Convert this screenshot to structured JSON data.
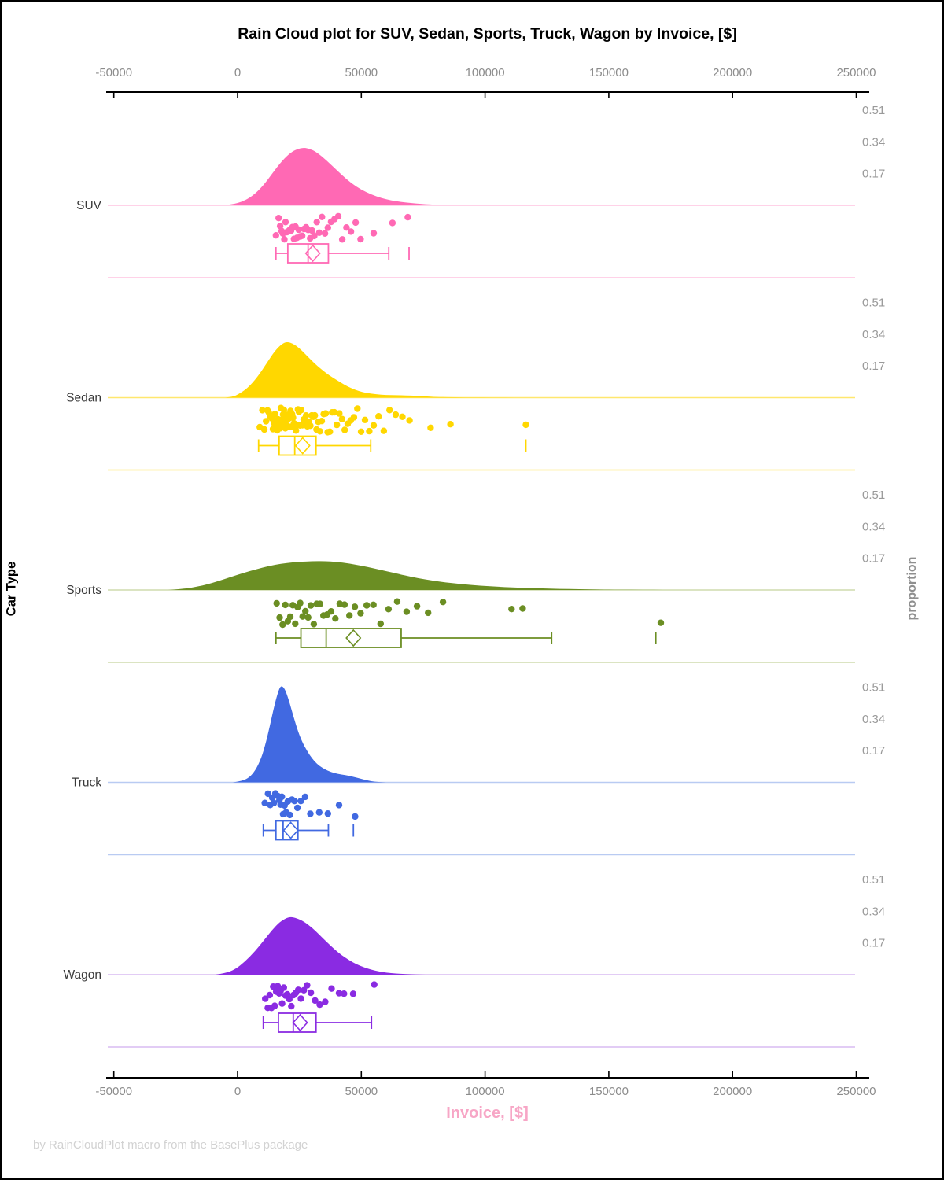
{
  "title": "Rain Cloud plot for SUV, Sedan, Sports, Truck, Wagon by Invoice, [$]",
  "xlabel": "Invoice, [$]",
  "ylabel_left": "Car Type",
  "ylabel_right": "proportion",
  "footer": "by RainCloudPlot macro from the BasePlus package",
  "colors": {
    "axis_line": "#000000",
    "tick_label": "#8c8c8c",
    "category_label": "#3a3a3a",
    "proportion_tick_label": "#9a9a9a",
    "xlabel_color": "#F7A6C6",
    "footer_color": "#d2d2d2",
    "background": "#ffffff"
  },
  "chart_data": {
    "type": "raincloud",
    "orientation": "horizontal bands: density cloud above baseline, jittered rain points and box plot below",
    "x_axis": {
      "label": "Invoice, [$]",
      "ticks": [
        -50000,
        0,
        50000,
        100000,
        150000,
        200000,
        250000
      ],
      "range": [
        -52500,
        255000
      ],
      "shown_top_and_bottom": true
    },
    "proportion_axis": {
      "label": "proportion",
      "ticks_per_band": [
        0.51,
        0.34,
        0.17
      ]
    },
    "categories": [
      "SUV",
      "Sedan",
      "Sports",
      "Truck",
      "Wagon"
    ],
    "series": [
      {
        "name": "SUV",
        "color": "#FF69B4",
        "light_color": "#FFC4E0",
        "density": [
          [
            -6000,
            0
          ],
          [
            -2000,
            0.005
          ],
          [
            2000,
            0.02
          ],
          [
            6000,
            0.05
          ],
          [
            10000,
            0.1
          ],
          [
            14000,
            0.17
          ],
          [
            18000,
            0.24
          ],
          [
            22000,
            0.29
          ],
          [
            26000,
            0.31
          ],
          [
            29000,
            0.305
          ],
          [
            32000,
            0.285
          ],
          [
            36000,
            0.24
          ],
          [
            40000,
            0.19
          ],
          [
            44000,
            0.14
          ],
          [
            48000,
            0.1
          ],
          [
            52000,
            0.07
          ],
          [
            56000,
            0.048
          ],
          [
            60000,
            0.032
          ],
          [
            64000,
            0.022
          ],
          [
            68000,
            0.015
          ],
          [
            72000,
            0.01
          ],
          [
            76000,
            0.006
          ],
          [
            80000,
            0.003
          ],
          [
            86000,
            0.001
          ],
          [
            92000,
            0
          ]
        ],
        "points": [
          15500,
          16600,
          17200,
          17800,
          18300,
          18900,
          19400,
          19900,
          20400,
          21000,
          21600,
          22200,
          22800,
          23400,
          24000,
          24700,
          25400,
          26100,
          26900,
          27700,
          28500,
          29300,
          30100,
          31000,
          32000,
          33000,
          34100,
          35300,
          36500,
          37800,
          39200,
          40700,
          42300,
          44000,
          45800,
          47700,
          49700,
          55000,
          62600,
          68800
        ],
        "box": {
          "whisker_low": 15500,
          "q1": 20300,
          "median": 28500,
          "mean": 30400,
          "q3": 36700,
          "whisker_high": 61100,
          "outliers": [
            69300
          ]
        }
      },
      {
        "name": "Sedan",
        "color": "#FFD700",
        "light_color": "#FFE76E",
        "density": [
          [
            -5000,
            0
          ],
          [
            -2000,
            0.005
          ],
          [
            0,
            0.015
          ],
          [
            4000,
            0.05
          ],
          [
            8000,
            0.11
          ],
          [
            12000,
            0.19
          ],
          [
            15000,
            0.25
          ],
          [
            18000,
            0.29
          ],
          [
            20000,
            0.3
          ],
          [
            22500,
            0.29
          ],
          [
            25000,
            0.265
          ],
          [
            28000,
            0.225
          ],
          [
            31000,
            0.185
          ],
          [
            34000,
            0.15
          ],
          [
            37000,
            0.12
          ],
          [
            40000,
            0.095
          ],
          [
            43000,
            0.07
          ],
          [
            46000,
            0.05
          ],
          [
            49000,
            0.035
          ],
          [
            52000,
            0.025
          ],
          [
            56000,
            0.018
          ],
          [
            60000,
            0.014
          ],
          [
            64000,
            0.013
          ],
          [
            68000,
            0.012
          ],
          [
            72000,
            0.01
          ],
          [
            76000,
            0.007
          ],
          [
            80000,
            0.004
          ],
          [
            86000,
            0.002
          ],
          [
            94000,
            0.001
          ],
          [
            104000,
            0.0005
          ],
          [
            112000,
            0
          ]
        ],
        "points": [
          9000,
          10000,
          10800,
          11500,
          12100,
          12600,
          13100,
          13500,
          13900,
          14300,
          14700,
          15100,
          15400,
          15700,
          16000,
          16300,
          16600,
          16900,
          17200,
          17500,
          17800,
          18100,
          18400,
          18700,
          19000,
          19300,
          19600,
          19900,
          20200,
          20500,
          20800,
          21100,
          21400,
          21700,
          22000,
          22400,
          22800,
          23200,
          23600,
          24000,
          24400,
          24800,
          25200,
          25700,
          26200,
          26700,
          27200,
          27700,
          28200,
          28800,
          29400,
          30000,
          30600,
          31200,
          31900,
          32600,
          33300,
          34000,
          34800,
          35600,
          36400,
          37300,
          38200,
          39100,
          40100,
          41100,
          42200,
          43300,
          44500,
          45700,
          47000,
          48400,
          49900,
          51500,
          53200,
          55000,
          57000,
          59100,
          61400,
          63900,
          66600,
          69500,
          78000,
          86000,
          116500
        ],
        "box": {
          "whisker_low": 8500,
          "q1": 16800,
          "median": 23100,
          "mean": 26300,
          "q3": 31700,
          "whisker_high": 53800,
          "outliers": [
            116500
          ]
        }
      },
      {
        "name": "Sports",
        "color": "#6B8E23",
        "light_color": "#CFDCAE",
        "density": [
          [
            -28000,
            0
          ],
          [
            -22000,
            0.006
          ],
          [
            -16000,
            0.018
          ],
          [
            -10000,
            0.038
          ],
          [
            -5000,
            0.06
          ],
          [
            0,
            0.082
          ],
          [
            5000,
            0.102
          ],
          [
            10000,
            0.12
          ],
          [
            15000,
            0.135
          ],
          [
            20000,
            0.145
          ],
          [
            25000,
            0.151
          ],
          [
            30000,
            0.154
          ],
          [
            35000,
            0.155
          ],
          [
            40000,
            0.151
          ],
          [
            45000,
            0.142
          ],
          [
            50000,
            0.13
          ],
          [
            55000,
            0.116
          ],
          [
            60000,
            0.101
          ],
          [
            65000,
            0.086
          ],
          [
            70000,
            0.071
          ],
          [
            76000,
            0.056
          ],
          [
            82000,
            0.044
          ],
          [
            90000,
            0.032
          ],
          [
            98000,
            0.023
          ],
          [
            106000,
            0.017
          ],
          [
            114000,
            0.012
          ],
          [
            122000,
            0.009
          ],
          [
            130000,
            0.006
          ],
          [
            138000,
            0.004
          ],
          [
            146000,
            0.002
          ],
          [
            154000,
            0.001
          ],
          [
            164000,
            0.0005
          ],
          [
            172000,
            0
          ]
        ],
        "points": [
          15800,
          17000,
          18200,
          19300,
          20300,
          21300,
          22300,
          23300,
          24300,
          25300,
          26300,
          27400,
          28500,
          29600,
          30800,
          32000,
          33300,
          34700,
          36200,
          37800,
          39500,
          41300,
          43200,
          45200,
          47400,
          49700,
          52200,
          54900,
          57800,
          61000,
          64500,
          68300,
          72500,
          77000,
          83000,
          110700,
          115200,
          171000
        ],
        "box": {
          "whisker_low": 15500,
          "q1": 25600,
          "median": 35800,
          "mean": 46800,
          "q3": 66100,
          "whisker_high": 126900,
          "outliers": [
            169000
          ]
        }
      },
      {
        "name": "Truck",
        "color": "#4169E1",
        "light_color": "#B9CBF2",
        "density": [
          [
            -2000,
            0
          ],
          [
            1000,
            0.005
          ],
          [
            4000,
            0.02
          ],
          [
            6500,
            0.05
          ],
          [
            9000,
            0.11
          ],
          [
            11000,
            0.19
          ],
          [
            13000,
            0.3
          ],
          [
            15000,
            0.42
          ],
          [
            16500,
            0.49
          ],
          [
            17500,
            0.52
          ],
          [
            19000,
            0.505
          ],
          [
            20500,
            0.45
          ],
          [
            22000,
            0.38
          ],
          [
            24000,
            0.29
          ],
          [
            26000,
            0.22
          ],
          [
            28000,
            0.17
          ],
          [
            30000,
            0.13
          ],
          [
            32000,
            0.1
          ],
          [
            34000,
            0.08
          ],
          [
            36500,
            0.062
          ],
          [
            39000,
            0.05
          ],
          [
            42000,
            0.042
          ],
          [
            45000,
            0.036
          ],
          [
            48000,
            0.026
          ],
          [
            51000,
            0.015
          ],
          [
            54000,
            0.006
          ],
          [
            57000,
            0.002
          ],
          [
            60000,
            0
          ]
        ],
        "points": [
          11000,
          12300,
          13200,
          14000,
          14700,
          15300,
          15900,
          16400,
          16900,
          17400,
          17900,
          18400,
          19000,
          19600,
          20300,
          21100,
          22000,
          23000,
          24200,
          25600,
          27300,
          29400,
          33000,
          36500,
          41000,
          47500
        ],
        "box": {
          "whisker_low": 10400,
          "q1": 15500,
          "median": 18400,
          "mean": 21500,
          "q3": 24400,
          "whisker_high": 36700,
          "outliers": [
            46800
          ]
        }
      },
      {
        "name": "Wagon",
        "color": "#8A2BE2",
        "light_color": "#D9BCF2",
        "density": [
          [
            -9000,
            0
          ],
          [
            -5000,
            0.008
          ],
          [
            -1000,
            0.028
          ],
          [
            3000,
            0.07
          ],
          [
            7000,
            0.125
          ],
          [
            11000,
            0.19
          ],
          [
            14000,
            0.24
          ],
          [
            17000,
            0.283
          ],
          [
            20000,
            0.306
          ],
          [
            22000,
            0.31
          ],
          [
            24500,
            0.3
          ],
          [
            27000,
            0.283
          ],
          [
            30000,
            0.253
          ],
          [
            33000,
            0.215
          ],
          [
            36000,
            0.175
          ],
          [
            39000,
            0.138
          ],
          [
            42000,
            0.105
          ],
          [
            45000,
            0.078
          ],
          [
            48000,
            0.056
          ],
          [
            51000,
            0.04
          ],
          [
            54000,
            0.027
          ],
          [
            57000,
            0.018
          ],
          [
            60000,
            0.011
          ],
          [
            64000,
            0.006
          ],
          [
            68000,
            0.003
          ],
          [
            72000,
            0.001
          ],
          [
            76000,
            0
          ]
        ],
        "points": [
          11200,
          12200,
          13000,
          13700,
          14400,
          15000,
          15600,
          16200,
          16800,
          17400,
          18000,
          18700,
          19400,
          20100,
          20900,
          21700,
          22600,
          23500,
          24500,
          25600,
          26800,
          28100,
          29600,
          31300,
          33200,
          35400,
          38000,
          41000,
          43000,
          46700,
          55200
        ],
        "box": {
          "whisker_low": 10400,
          "q1": 16500,
          "median": 22500,
          "mean": 25300,
          "q3": 31700,
          "whisker_high": 54100,
          "outliers": []
        }
      }
    ]
  }
}
